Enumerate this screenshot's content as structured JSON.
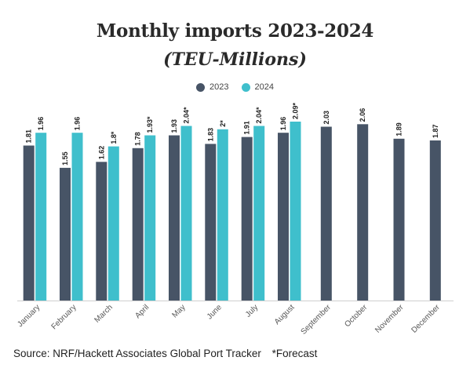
{
  "chart_data": {
    "type": "bar",
    "title": "Monthly imports 2023-2024",
    "subtitle": "(TEU-Millions)",
    "categories": [
      "January",
      "February",
      "March",
      "April",
      "May",
      "June",
      "July",
      "August",
      "September",
      "October",
      "November",
      "December"
    ],
    "series": [
      {
        "name": "2023",
        "color": "#475466",
        "values": [
          1.81,
          1.55,
          1.62,
          1.78,
          1.93,
          1.83,
          1.91,
          1.96,
          2.03,
          2.06,
          1.89,
          1.87
        ],
        "labels": [
          "1.81",
          "1.55",
          "1.62",
          "1.78",
          "1.93",
          "1.83",
          "1.91",
          "1.96",
          "2.03",
          "2.06",
          "1.89",
          "1.87"
        ]
      },
      {
        "name": "2024",
        "color": "#3fbfcc",
        "values": [
          1.96,
          1.96,
          1.8,
          1.93,
          2.04,
          2.0,
          2.04,
          2.09,
          null,
          null,
          null,
          null
        ],
        "labels": [
          "1.96",
          "1.96",
          "1.8*",
          "1.93*",
          "2.04*",
          "2*",
          "2.04*",
          "2.09*",
          null,
          null,
          null,
          null
        ]
      }
    ],
    "ylim": [
      0.0,
      2.2
    ],
    "xlabel": "",
    "ylabel": "",
    "grid": false,
    "legend_position": "top-center"
  },
  "footer": {
    "source": "Source: NRF/Hackett Associates Global Port Tracker",
    "note": "*Forecast"
  }
}
